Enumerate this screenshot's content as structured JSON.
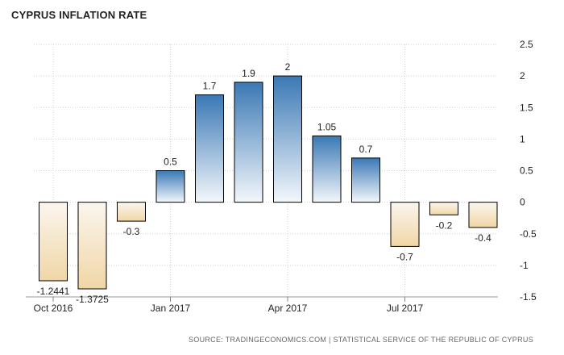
{
  "chart_data": {
    "type": "bar",
    "title": "CYPRUS INFLATION RATE",
    "categories": [
      "Oct 2016",
      "Nov 2016",
      "Dec 2016",
      "Jan 2017",
      "Feb 2017",
      "Mar 2017",
      "Apr 2017",
      "May 2017",
      "Jun 2017",
      "Jul 2017",
      "Aug 2017",
      "Sep 2017"
    ],
    "values": [
      -1.2441,
      -1.3725,
      -0.3,
      0.5,
      1.7,
      1.9,
      2,
      1.05,
      0.7,
      -0.7,
      -0.2,
      -0.4
    ],
    "data_labels": [
      "-1.2441",
      "-1.3725",
      "-0.3",
      "0.5",
      "1.7",
      "1.9",
      "2",
      "1.05",
      "0.7",
      "-0.7",
      "-0.2",
      "-0.4"
    ],
    "x_tick_labels": [
      {
        "category": "Oct 2016",
        "label": "Oct 2016"
      },
      {
        "category": "Jan 2017",
        "label": "Jan 2017"
      },
      {
        "category": "Apr 2017",
        "label": "Apr 2017"
      },
      {
        "category": "Jul 2017",
        "label": "Jul 2017"
      }
    ],
    "y_ticks": [
      "2.5",
      "2",
      "1.5",
      "1",
      "0.5",
      "0",
      "-0.5",
      "-1",
      "-1.5"
    ],
    "ylim": [
      -1.5,
      2.5
    ],
    "y_axis_side": "right",
    "grid": true,
    "colors": {
      "positive_top": "#3a78b5",
      "positive_bottom": "#f3f7fb",
      "negative_top": "#fbf6ee",
      "negative_bottom": "#f0d6a6",
      "bar_stroke": "#000000",
      "grid": "#d0d0d0"
    }
  },
  "source_text": "SOURCE: TRADINGECONOMICS.COM | STATISTICAL SERVICE OF THE REPUBLIC OF CYPRUS"
}
